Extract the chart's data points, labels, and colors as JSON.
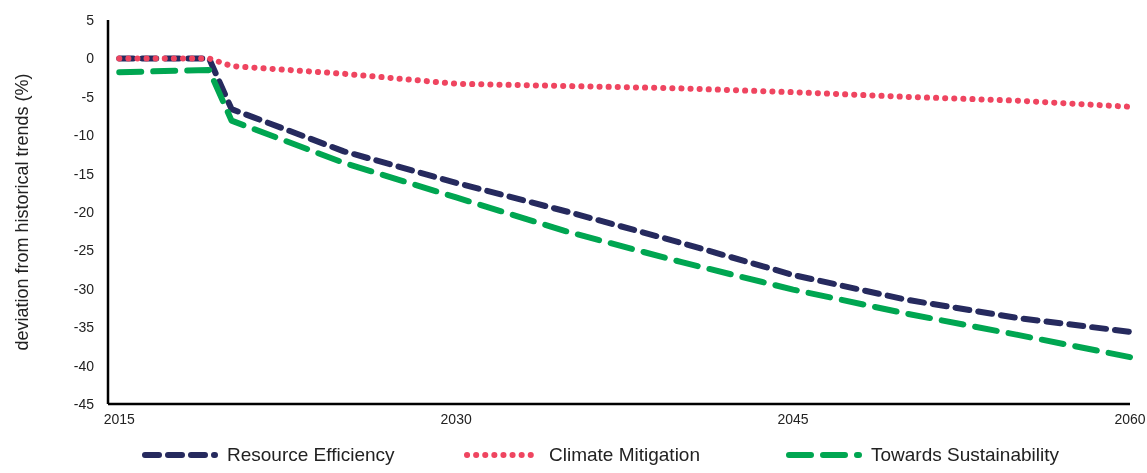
{
  "chart_data": {
    "type": "line",
    "ylabel": "deviation from historical trends (%)",
    "x": [
      2015,
      2019,
      2020,
      2025,
      2030,
      2035,
      2040,
      2045,
      2050,
      2055,
      2060
    ],
    "xlim": [
      2014.5,
      2060
    ],
    "xticks": [
      2015,
      2030,
      2045,
      2060
    ],
    "ylim": [
      -45,
      5
    ],
    "yticks": [
      5,
      0,
      -5,
      -10,
      -15,
      -20,
      -25,
      -30,
      -35,
      -40,
      -45
    ],
    "grid": false,
    "legend": "bottom",
    "series": [
      {
        "name": "Resource Efficiency",
        "color": "#262a5e",
        "line_style": "dashed",
        "values": [
          0,
          0,
          -6.6,
          -12.1,
          -16.2,
          -20,
          -24,
          -28.2,
          -31.4,
          -33.8,
          -35.6
        ]
      },
      {
        "name": "Climate Mitigation",
        "color": "#ef4560",
        "line_style": "dotted",
        "values": [
          0,
          0,
          -1,
          -2,
          -3.3,
          -3.6,
          -3.9,
          -4.4,
          -5,
          -5.5,
          -6.3
        ]
      },
      {
        "name": "Towards Sustainability",
        "color": "#00a651",
        "line_style": "dashed",
        "values": [
          -1.8,
          -1.5,
          -8.1,
          -13.6,
          -18.1,
          -22.6,
          -26.5,
          -30.1,
          -33.2,
          -36,
          -38.9
        ]
      }
    ]
  }
}
